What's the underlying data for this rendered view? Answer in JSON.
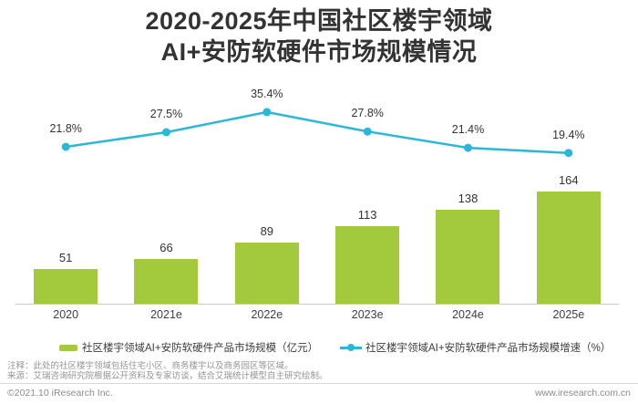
{
  "title": {
    "line1": "2020-2025年中国社区楼宇领域",
    "line2": "AI+安防软硬件市场规模情况"
  },
  "chart_data": {
    "type": "bar+line",
    "title": "2020-2025年中国社区楼宇领域AI+安防软硬件市场规模情况",
    "categories": [
      "2020",
      "2021e",
      "2022e",
      "2023e",
      "2024e",
      "2025e"
    ],
    "series": [
      {
        "name": "社区楼宇领域AI+安防软硬件产品市场规模（亿元）",
        "type": "bar",
        "values": [
          51,
          66,
          89,
          113,
          138,
          164
        ],
        "unit": "亿元",
        "color": "#a3c93c"
      },
      {
        "name": "社区楼宇领域AI+安防软硬件产品市场规模增速（%）",
        "type": "line",
        "values": [
          21.8,
          27.5,
          35.4,
          27.8,
          21.4,
          19.4
        ],
        "unit": "%",
        "color": "#2bb7d9",
        "label_suffix": "%"
      }
    ],
    "bar_ylim": [
      0,
      180
    ],
    "line_ylim": [
      0,
      45
    ],
    "grid": false,
    "legend_position": "bottom",
    "axis_color": "#c9c9c9"
  },
  "legend": [
    {
      "label": "社区楼宇领域AI+安防软硬件产品市场规模（亿元）",
      "color": "#a3c93c",
      "marker": "bar-swatch"
    },
    {
      "label": "社区楼宇领域AI+安防软硬件产品市场规模增速（%）",
      "color": "#2bb7d9",
      "marker": "line-dot"
    }
  ],
  "notes": [
    {
      "prefix": "注释：",
      "text": "此处的社区楼宇领域包括住宅小区、商务楼宇以及商务园区等区域。"
    },
    {
      "prefix": "来源：",
      "text": "艾瑞咨询研究院根据公开资料及专家访谈，结合艾瑞统计模型自主研究绘制。"
    }
  ],
  "footer": {
    "copyright": "©2021.10 iResearch Inc.",
    "website": "www.iresearch.com.cn"
  }
}
